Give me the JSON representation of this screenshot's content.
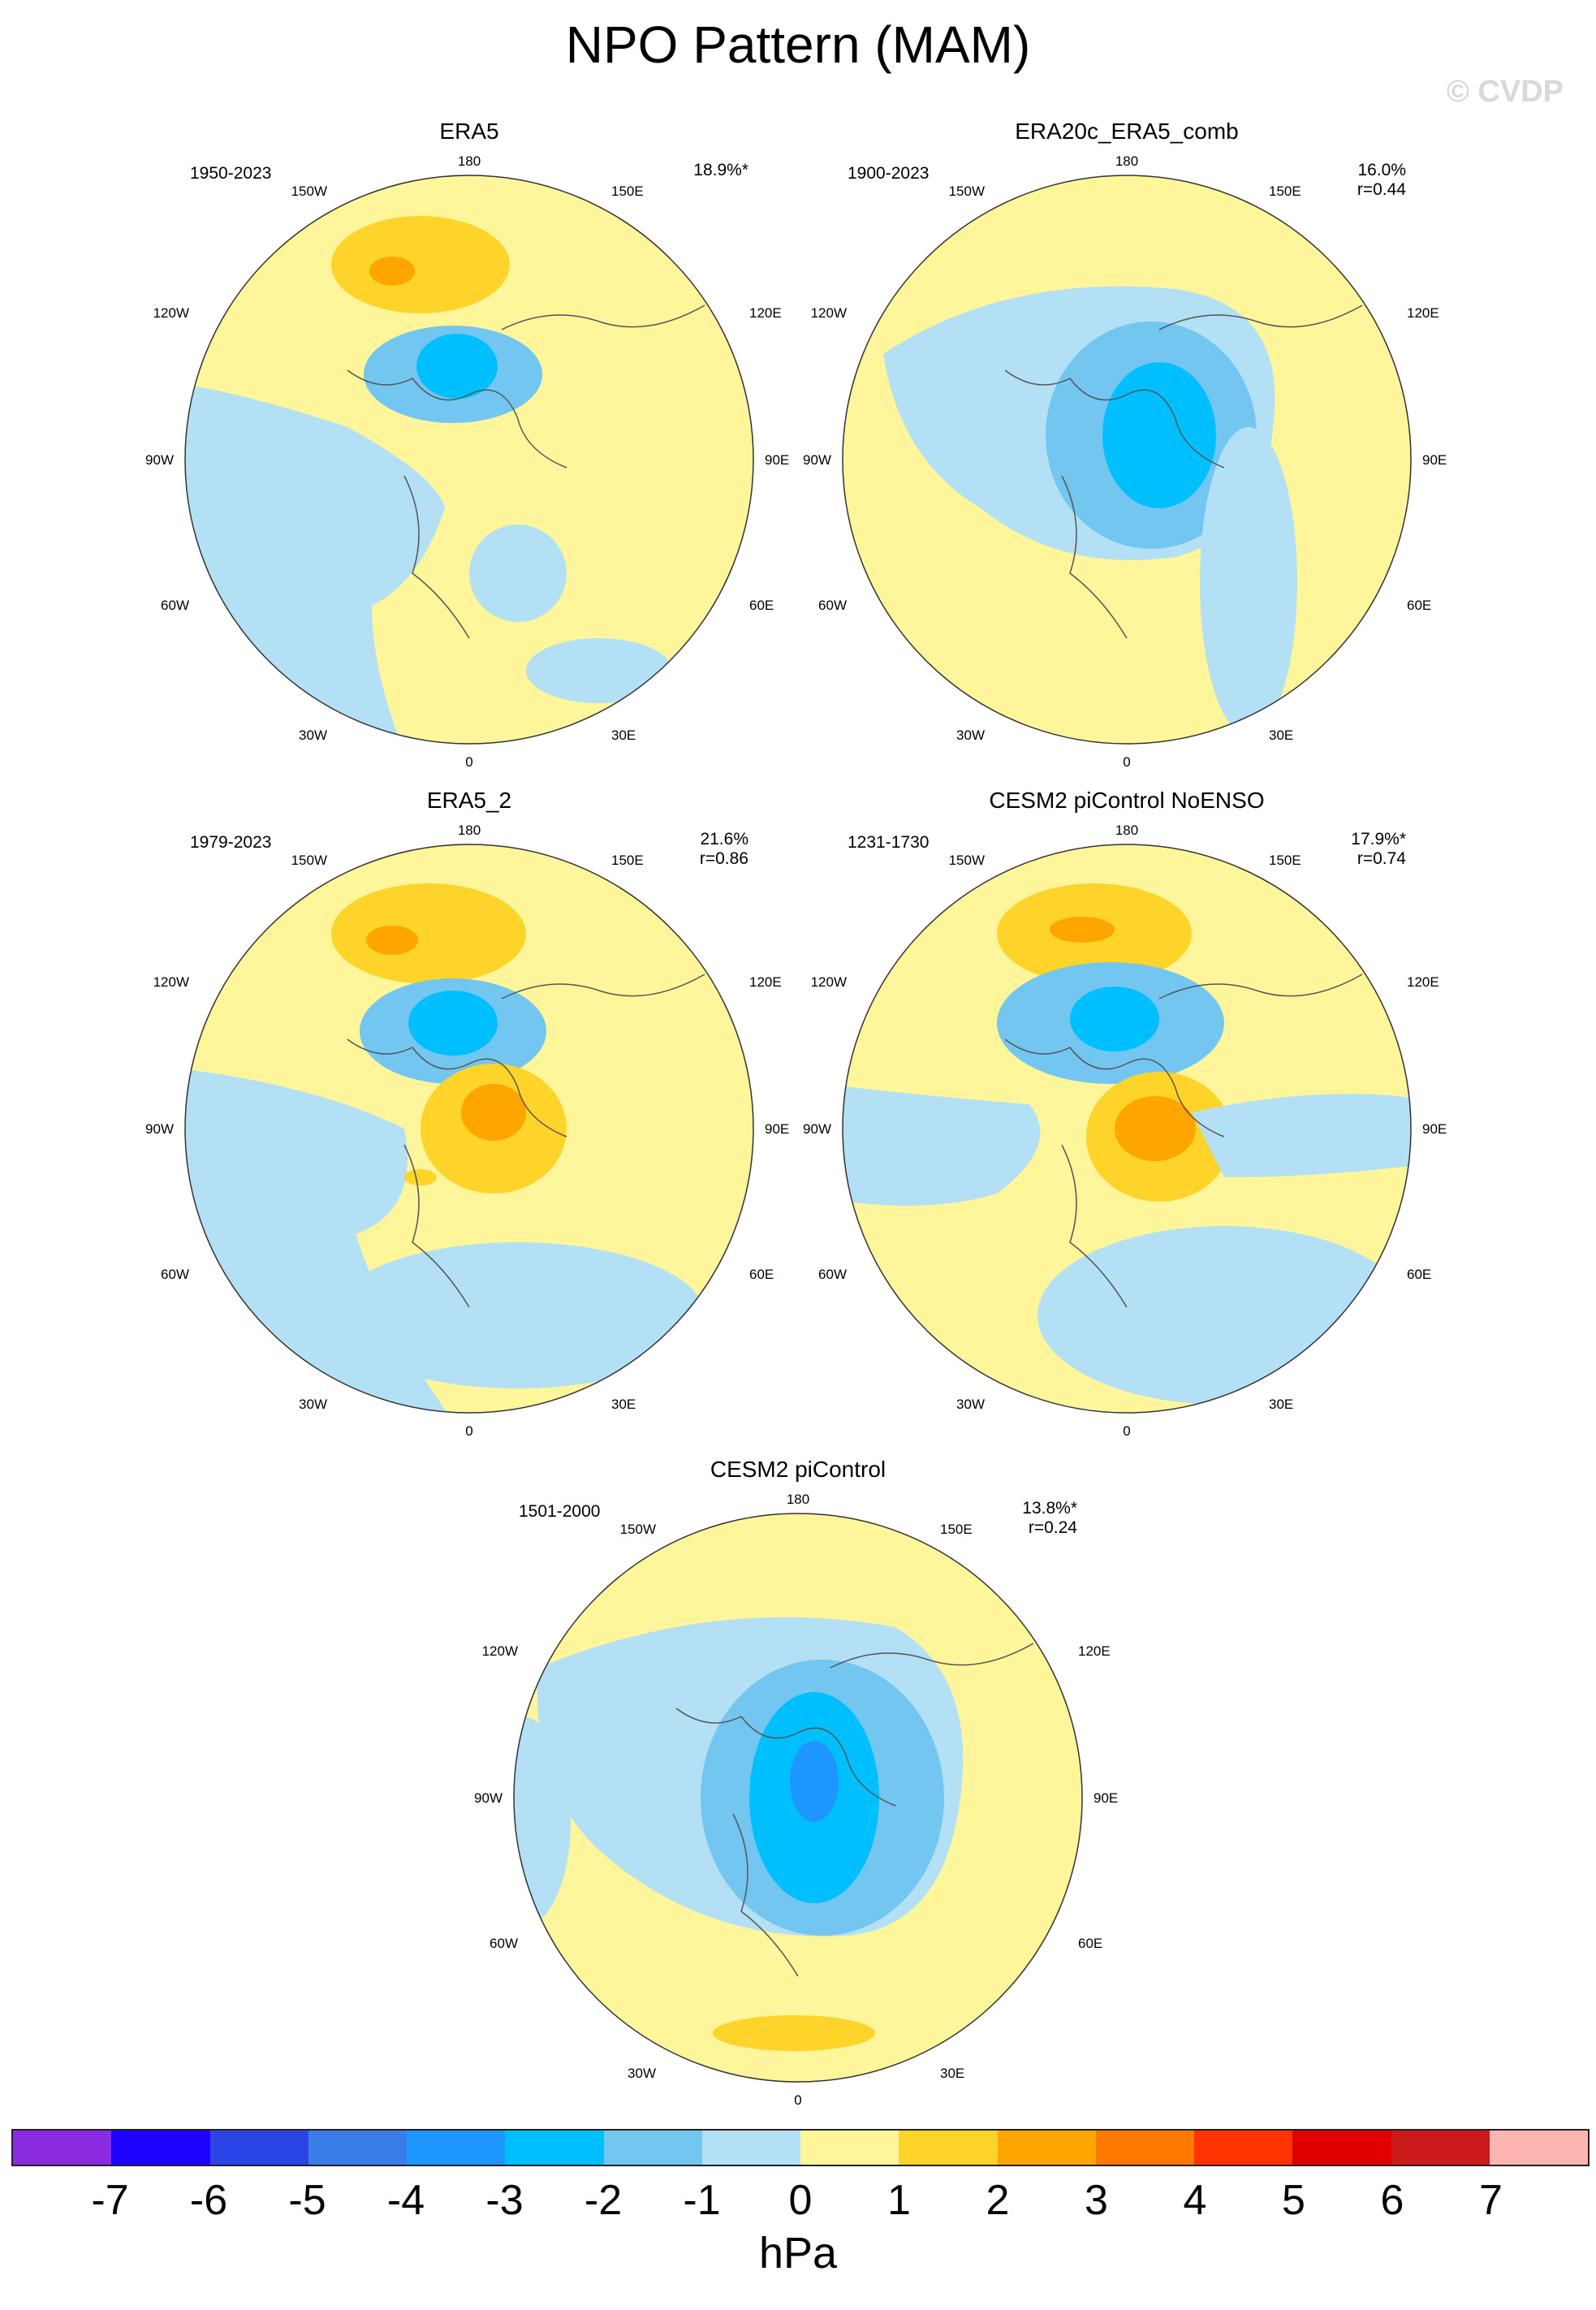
{
  "title": "NPO Pattern (MAM)",
  "watermark": "© CVDP",
  "panels": [
    {
      "title": "ERA5",
      "period": "1950-2023",
      "pct": "18.9%*",
      "r": ""
    },
    {
      "title": "ERA20c_ERA5_comb",
      "period": "1900-2023",
      "pct": "16.0%",
      "r": "r=0.44"
    },
    {
      "title": "ERA5_2",
      "period": "1979-2023",
      "pct": "21.6%",
      "r": "r=0.86"
    },
    {
      "title": "CESM2 piControl NoENSO",
      "period": "1231-1730",
      "pct": "17.9%*",
      "r": "r=0.74"
    },
    {
      "title": "CESM2 piControl",
      "period": "1501-2000",
      "pct": "13.8%*",
      "r": "r=0.24"
    }
  ],
  "lon_labels": {
    "top": "180",
    "bottom": "0",
    "left": "90W",
    "right": "90E",
    "tl1": "150W",
    "tl2": "120W",
    "bl1": "60W",
    "bl2": "30W",
    "tr1": "150E",
    "tr2": "120E",
    "br1": "60E",
    "br2": "30E"
  },
  "colorbar": {
    "colors": [
      "#8a2be2",
      "#1e00ff",
      "#2b44e6",
      "#3a7ce8",
      "#1e96ff",
      "#00bfff",
      "#73c6f0",
      "#b4e0f5",
      "#fff59b",
      "#ffd42a",
      "#ffa500",
      "#ff7800",
      "#ff3300",
      "#e00000",
      "#cc1a1a",
      "#ffb4b4"
    ],
    "ticks": [
      "-7",
      "-6",
      "-5",
      "-4",
      "-3",
      "-2",
      "-1",
      "0",
      "1",
      "2",
      "3",
      "4",
      "5",
      "6",
      "7"
    ],
    "units": "hPa"
  }
}
